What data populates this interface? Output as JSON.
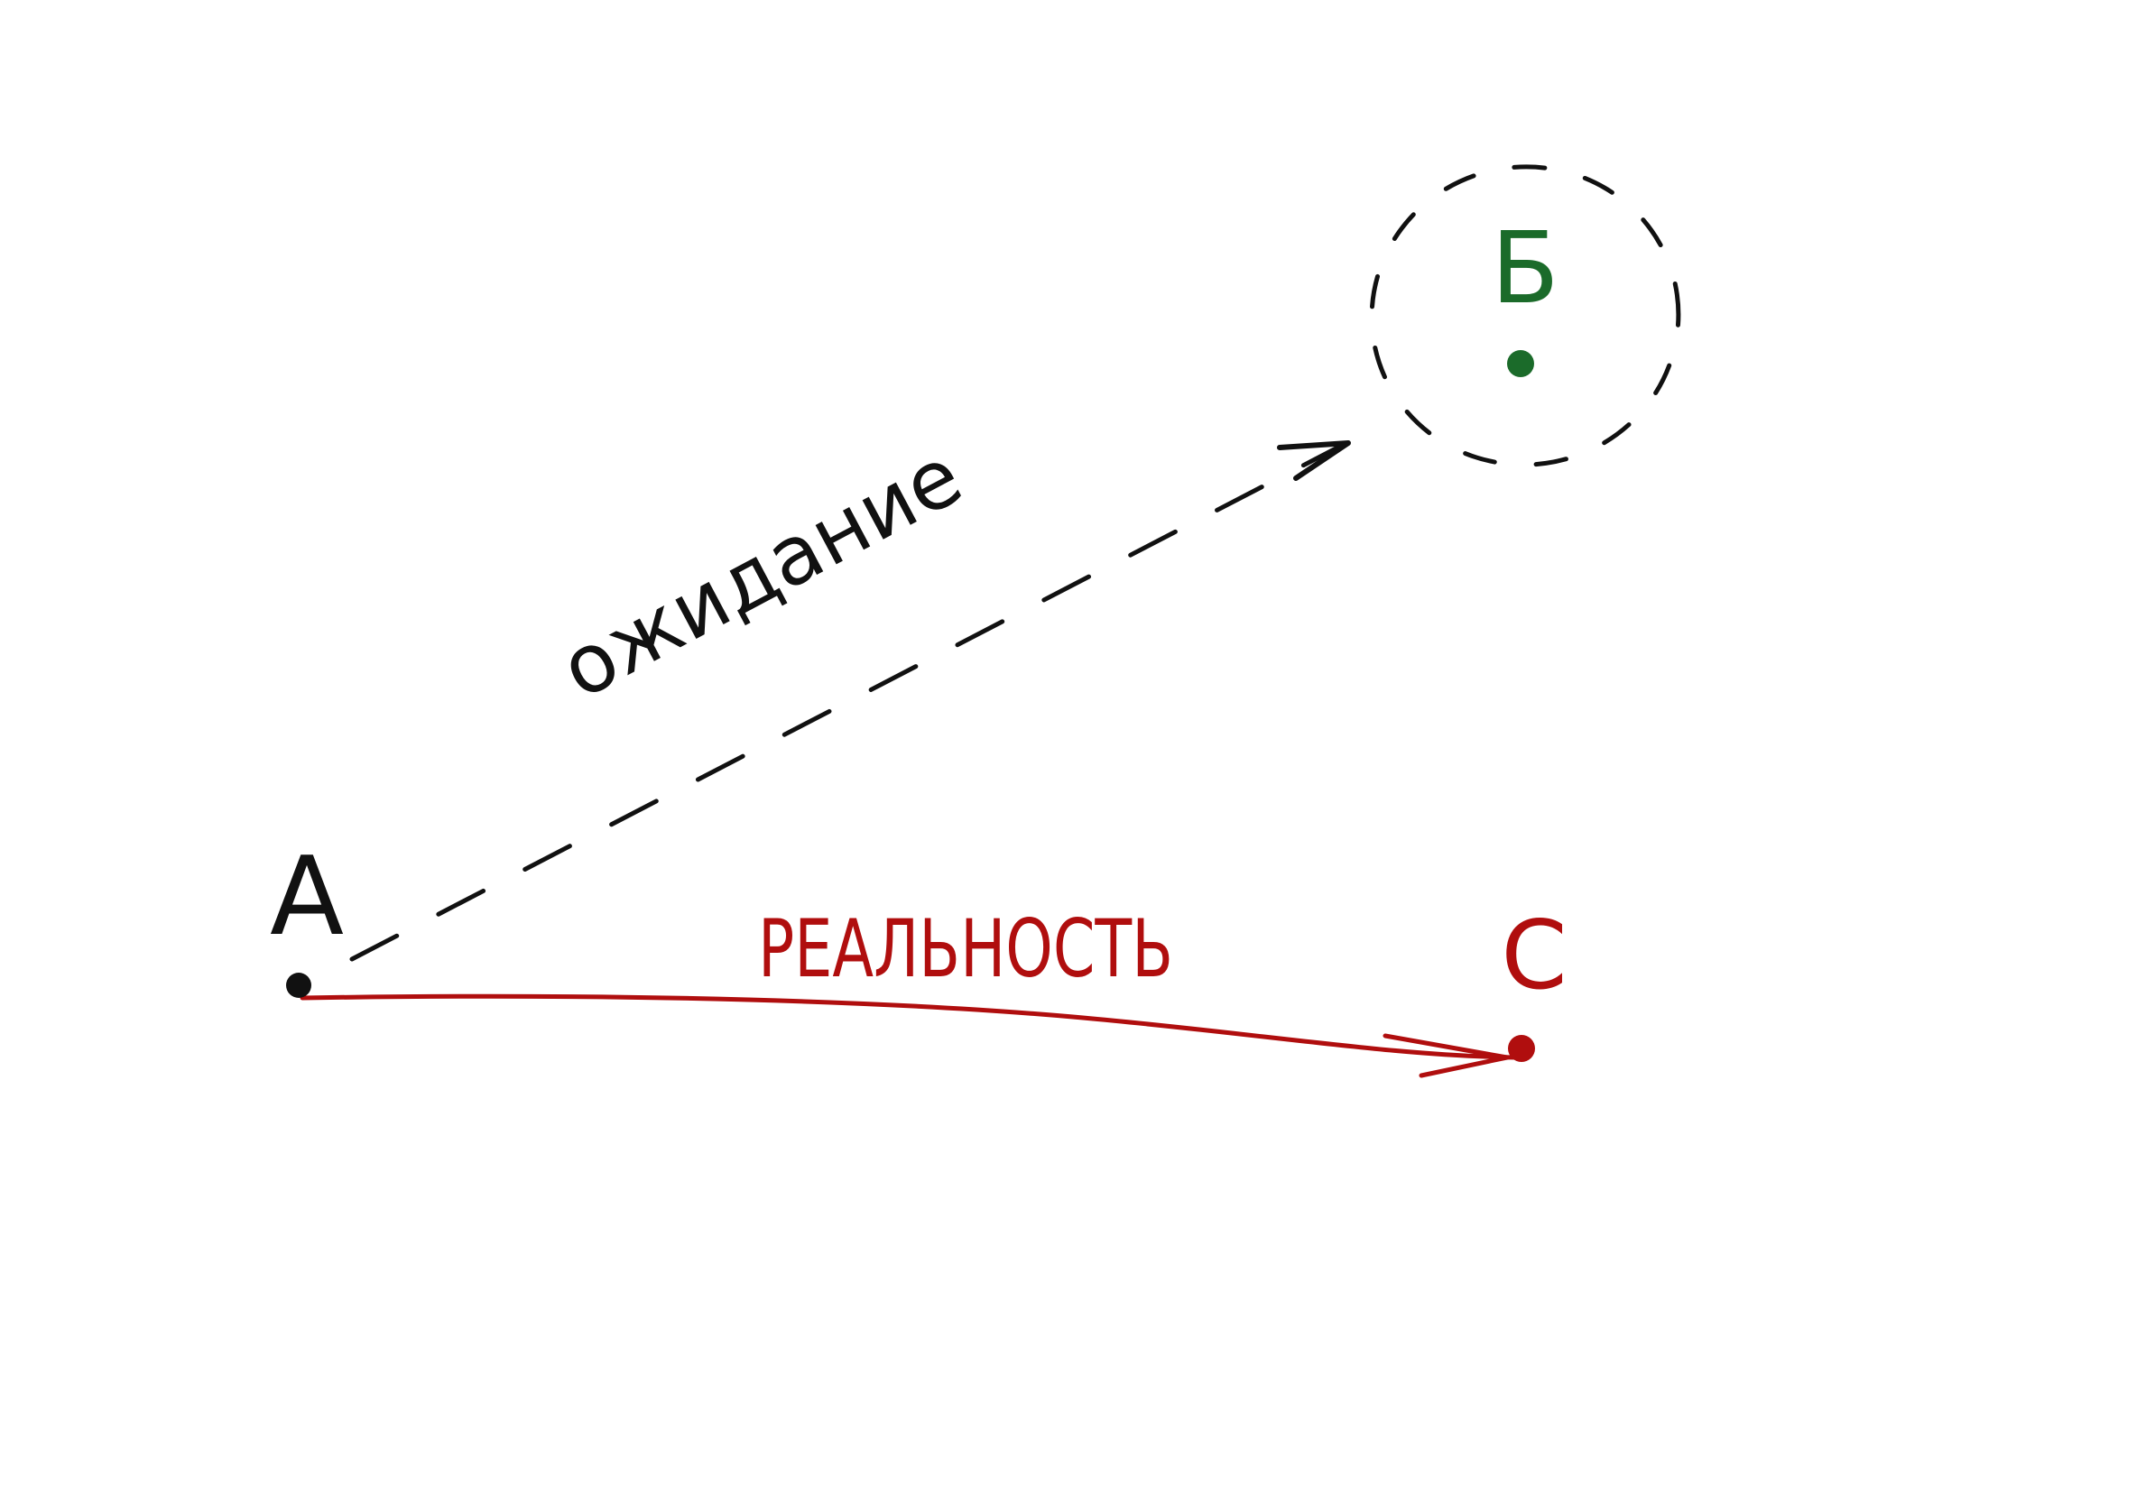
{
  "colors": {
    "background": "#ffffff",
    "ink": "#111111",
    "expectation_target": "#1b6b2a",
    "reality": "#b00e0e"
  },
  "points": {
    "a": {
      "label": "А"
    },
    "b": {
      "label": "Б"
    },
    "c": {
      "label": "С"
    }
  },
  "arrows": {
    "expectation": {
      "label": "ожидание"
    },
    "reality": {
      "label": "РЕАЛЬНОСТЬ"
    }
  }
}
